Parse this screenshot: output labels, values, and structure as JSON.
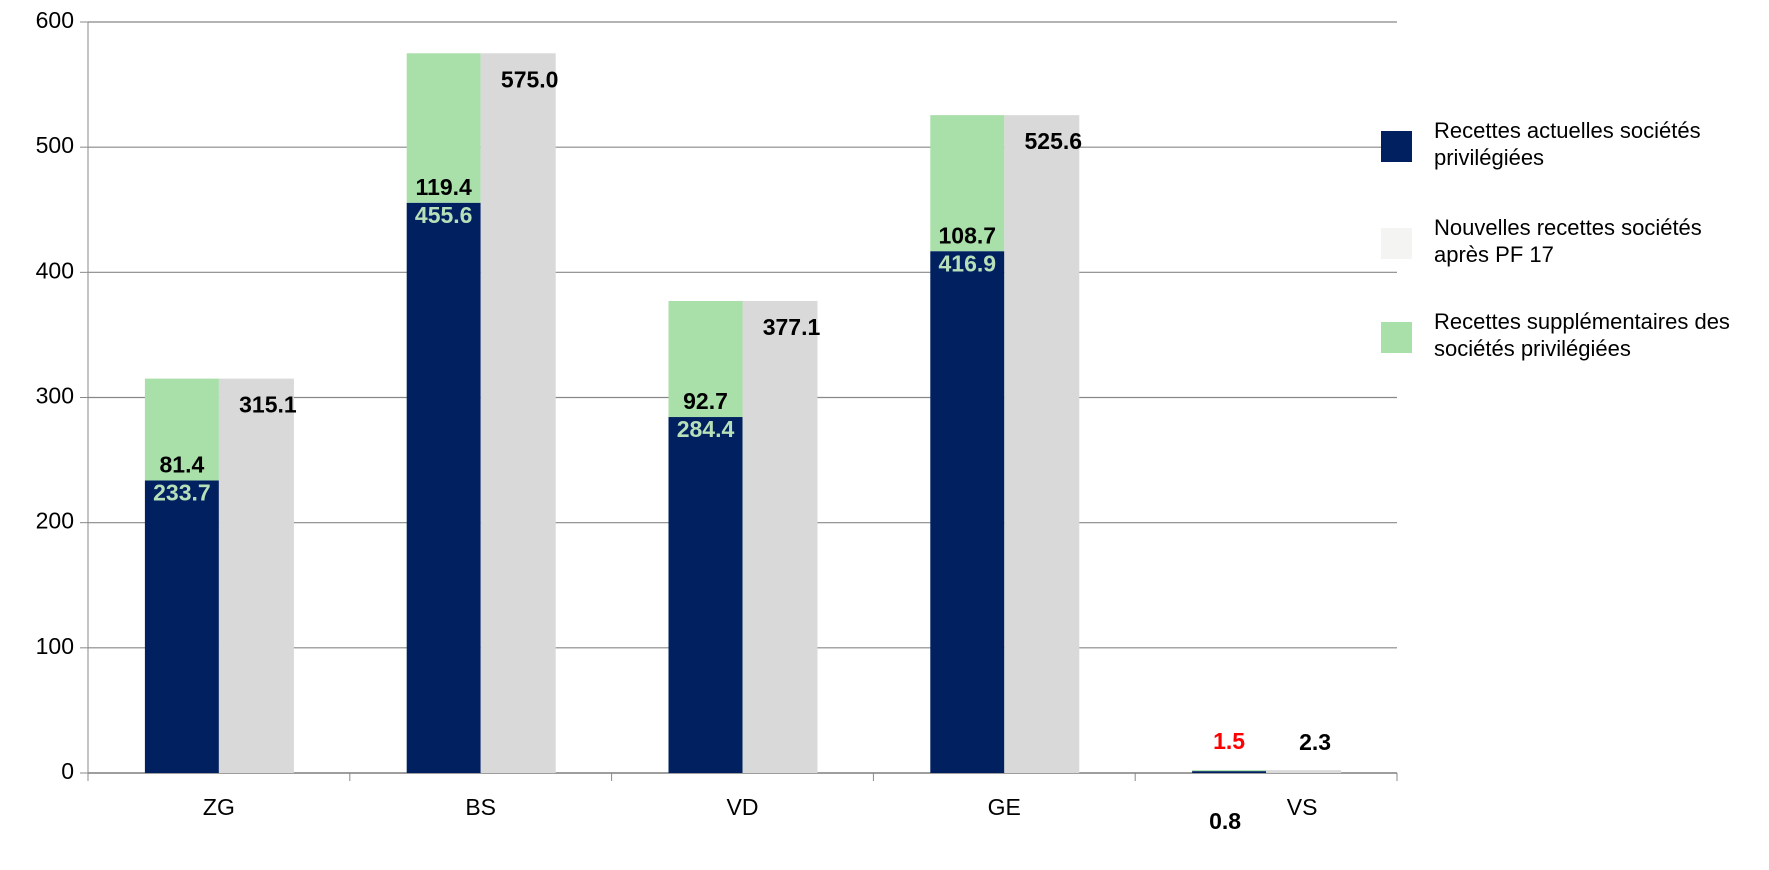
{
  "chart_data": {
    "type": "bar",
    "categories": [
      "ZG",
      "BS",
      "VD",
      "GE",
      "VS"
    ],
    "series": [
      {
        "name": "Recettes actuelles sociétés privilégiées",
        "color": "#002060",
        "values": [
          233.7,
          455.6,
          284.4,
          416.9,
          1.5
        ],
        "value_label_colors": [
          "#b8e0b8",
          "#b8e0b8",
          "#b8e0b8",
          "#b8e0b8",
          "#ff0000"
        ],
        "stack": "a"
      },
      {
        "name": "Nouvelles recettes sociétés après PF 17",
        "color": "#d9d9d9",
        "legend_color": "#f4f4f2",
        "values": [
          315.1,
          575.0,
          377.1,
          525.6,
          2.3
        ],
        "value_labels": [
          "315.1",
          "575.0",
          "377.1",
          "525.6",
          "2.3"
        ],
        "stack": "b"
      },
      {
        "name": "Recettes supplémentaires des sociétés privilégiées",
        "color": "#a9dfa9",
        "values": [
          81.4,
          119.4,
          92.7,
          108.7,
          0.8
        ],
        "stack": "a"
      }
    ],
    "ylim": [
      0,
      600
    ],
    "yticks": [
      0,
      100,
      200,
      300,
      400,
      500,
      600
    ],
    "grid": true,
    "legend": "right"
  }
}
